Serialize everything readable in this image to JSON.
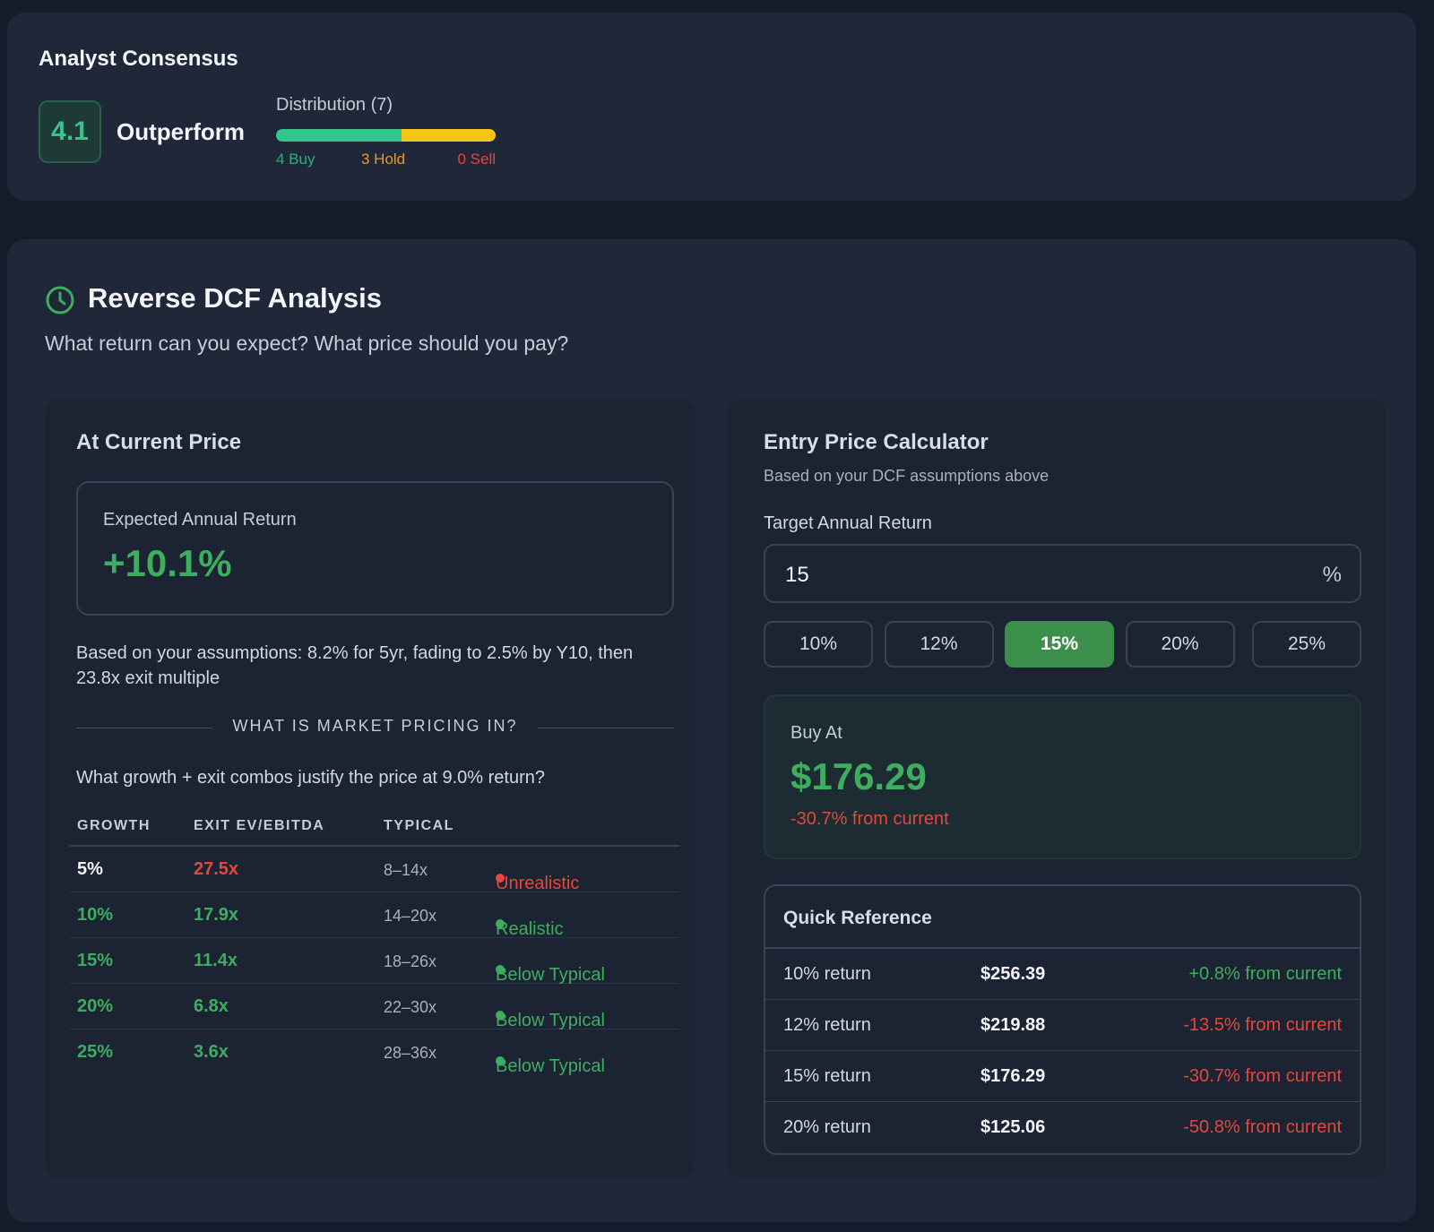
{
  "consensus": {
    "title": "Analyst Consensus",
    "score": "4.1",
    "rating": "Outperform",
    "distribution_label": "Distribution (7)",
    "buy_label": "4 Buy",
    "hold_label": "3 Hold",
    "sell_label": "0 Sell",
    "buy_count": 4,
    "hold_count": 3,
    "sell_count": 0
  },
  "reverse_dcf": {
    "title": "Reverse DCF Analysis",
    "subtitle": "What return can you expect? What price should you pay?",
    "icon": "clock-icon",
    "current": {
      "title": "At Current Price",
      "ear_label": "Expected Annual Return",
      "ear_value": "+10.1%",
      "assumptions": "Based on your assumptions: 8.2% for 5yr, fading to 2.5% by Y10, then 23.8x exit multiple",
      "divider": "WHAT IS MARKET PRICING IN?",
      "question": "What growth + exit combos justify the price at 9.0% return?",
      "headers": [
        "GROWTH",
        "EXIT EV/EBITDA",
        "TYPICAL"
      ],
      "rows": [
        {
          "growth": "5%",
          "exit": "27.5x",
          "typical": "8–14x",
          "status": "Unrealistic",
          "growth_color": "#f3f5f8",
          "exit_color": "#e5483b",
          "status_color": "#e5483b"
        },
        {
          "growth": "10%",
          "exit": "17.9x",
          "typical": "14–20x",
          "status": "Realistic",
          "growth_color": "#3dae5f",
          "exit_color": "#3dae5f",
          "status_color": "#3dae5f"
        },
        {
          "growth": "15%",
          "exit": "11.4x",
          "typical": "18–26x",
          "status": "Below Typical",
          "growth_color": "#3dae5f",
          "exit_color": "#3dae5f",
          "status_color": "#3dae5f"
        },
        {
          "growth": "20%",
          "exit": "6.8x",
          "typical": "22–30x",
          "status": "Below Typical",
          "growth_color": "#3dae5f",
          "exit_color": "#3dae5f",
          "status_color": "#3dae5f"
        },
        {
          "growth": "25%",
          "exit": "3.6x",
          "typical": "28–36x",
          "status": "Below Typical",
          "growth_color": "#3dae5f",
          "exit_color": "#3dae5f",
          "status_color": "#3dae5f"
        }
      ]
    },
    "calculator": {
      "title": "Entry Price Calculator",
      "subtitle": "Based on your DCF assumptions above",
      "target_label": "Target Annual Return",
      "target_value": "15",
      "target_unit": "%",
      "presets": [
        "10%",
        "12%",
        "15%",
        "20%",
        "25%"
      ],
      "active_preset": "15%",
      "buy_label": "Buy At",
      "buy_value": "$176.29",
      "buy_diff": "-30.7% from current",
      "quick_ref_title": "Quick Reference",
      "quick_ref": [
        {
          "ret": "10% return",
          "price": "$256.39",
          "diff": "+0.8% from current",
          "diff_color": "#3dae5f"
        },
        {
          "ret": "12% return",
          "price": "$219.88",
          "diff": "-13.5% from current",
          "diff_color": "#e5483b"
        },
        {
          "ret": "15% return",
          "price": "$176.29",
          "diff": "-30.7% from current",
          "diff_color": "#e5483b"
        },
        {
          "ret": "20% return",
          "price": "$125.06",
          "diff": "-50.8% from current",
          "diff_color": "#e5483b"
        }
      ]
    }
  },
  "colors": {
    "positive": "#3dae5f",
    "negative": "#e5483b",
    "buy": "#34c58b",
    "hold": "#f5c518",
    "sell": "#e5483b"
  }
}
